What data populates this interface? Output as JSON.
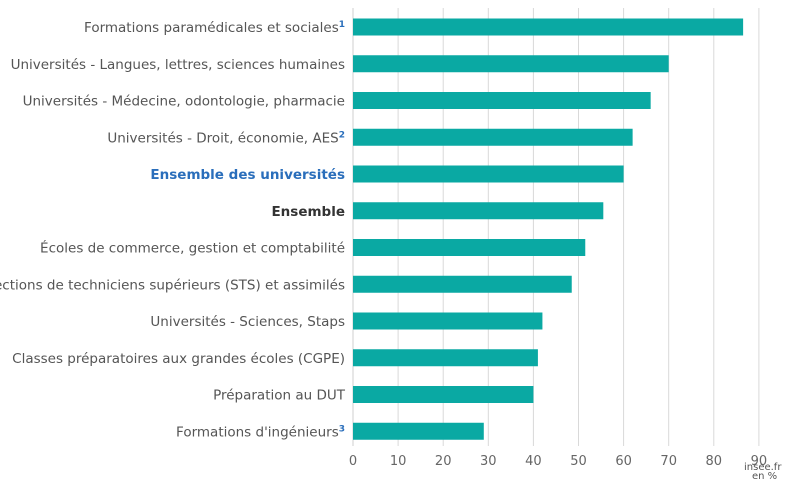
{
  "chart_data": {
    "type": "bar",
    "orientation": "horizontal",
    "categories": [
      "Formations paramédicales et sociales",
      "Universités - Langues, lettres, sciences humaines",
      "Universités - Médecine, odontologie, pharmacie",
      "Universités - Droit, économie, AES",
      "Ensemble des universités",
      "Ensemble",
      "Écoles de commerce, gestion et comptabilité",
      "Sections de techniciens supérieurs (STS) et assimilés",
      "Universités - Sciences, Staps",
      "Classes préparatoires aux grandes écoles (CGPE)",
      "Préparation au DUT",
      "Formations d'ingénieurs"
    ],
    "footnote_marks": [
      "1",
      "",
      "",
      "2",
      "",
      "",
      "",
      "",
      "",
      "",
      "",
      "3"
    ],
    "emphasis": [
      "",
      "",
      "",
      "",
      "blue",
      "bold",
      "",
      "",
      "",
      "",
      "",
      ""
    ],
    "values": [
      86.5,
      70,
      66,
      62,
      60,
      55.5,
      51.5,
      48.5,
      42,
      41,
      40,
      29
    ],
    "xlim": [
      0,
      90
    ],
    "xticks": [
      0,
      10,
      20,
      30,
      40,
      50,
      60,
      70,
      80,
      90
    ],
    "xlabel": "en %",
    "grid": "vertical",
    "bar_color": "#0aa9a3",
    "grid_color": "#d9d9d9",
    "emphasis_color": "#2a6ebb"
  },
  "watermark": "insee.fr"
}
